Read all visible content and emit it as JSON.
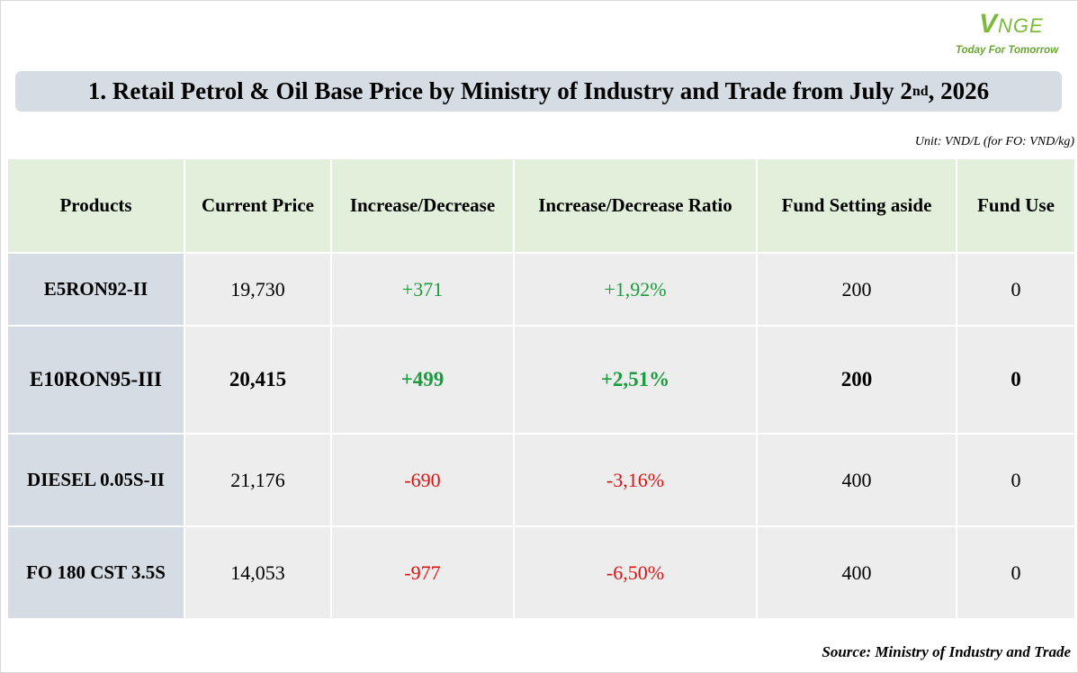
{
  "logo": {
    "mark_first": "V",
    "mark_rest": "NGE",
    "tagline": "Today For Tomorrow",
    "color": "#7cb93a"
  },
  "title": {
    "main": "1. Retail Petrol & Oil Base Price by Ministry of Industry and Trade from July 2",
    "sup": "nd",
    "tail": ", 2026"
  },
  "unit": "Unit: VND/L (for FO: VND/kg)",
  "table": {
    "headers": [
      "Products",
      "Current Price",
      "Increase/Decrease",
      "Increase/Decrease Ratio",
      "Fund Setting aside",
      "Fund Use"
    ],
    "rows": [
      {
        "product": "E5RON92-II",
        "price": "19,730",
        "change": "+371",
        "ratio": "+1,92%",
        "fund_aside": "200",
        "fund_use": "0"
      },
      {
        "product": "E10RON95-III",
        "price": "20,415",
        "change": "+499",
        "ratio": "+2,51%",
        "fund_aside": "200",
        "fund_use": "0"
      },
      {
        "product": "DIESEL 0.05S-II",
        "price": "21,176",
        "change": "-690",
        "ratio": "-3,16%",
        "fund_aside": "400",
        "fund_use": "0"
      },
      {
        "product": "FO 180 CST 3.5S",
        "price": "14,053",
        "change": "-977",
        "ratio": "-6,50%",
        "fund_aside": "400",
        "fund_use": "0"
      }
    ]
  },
  "colors": {
    "increase": "#1a9c3e",
    "decrease": "#e01010",
    "header_bg": "#e2efda",
    "product_bg": "#d6dce4",
    "cell_bg": "#ededed"
  },
  "source": "Source: Ministry of Industry and Trade"
}
